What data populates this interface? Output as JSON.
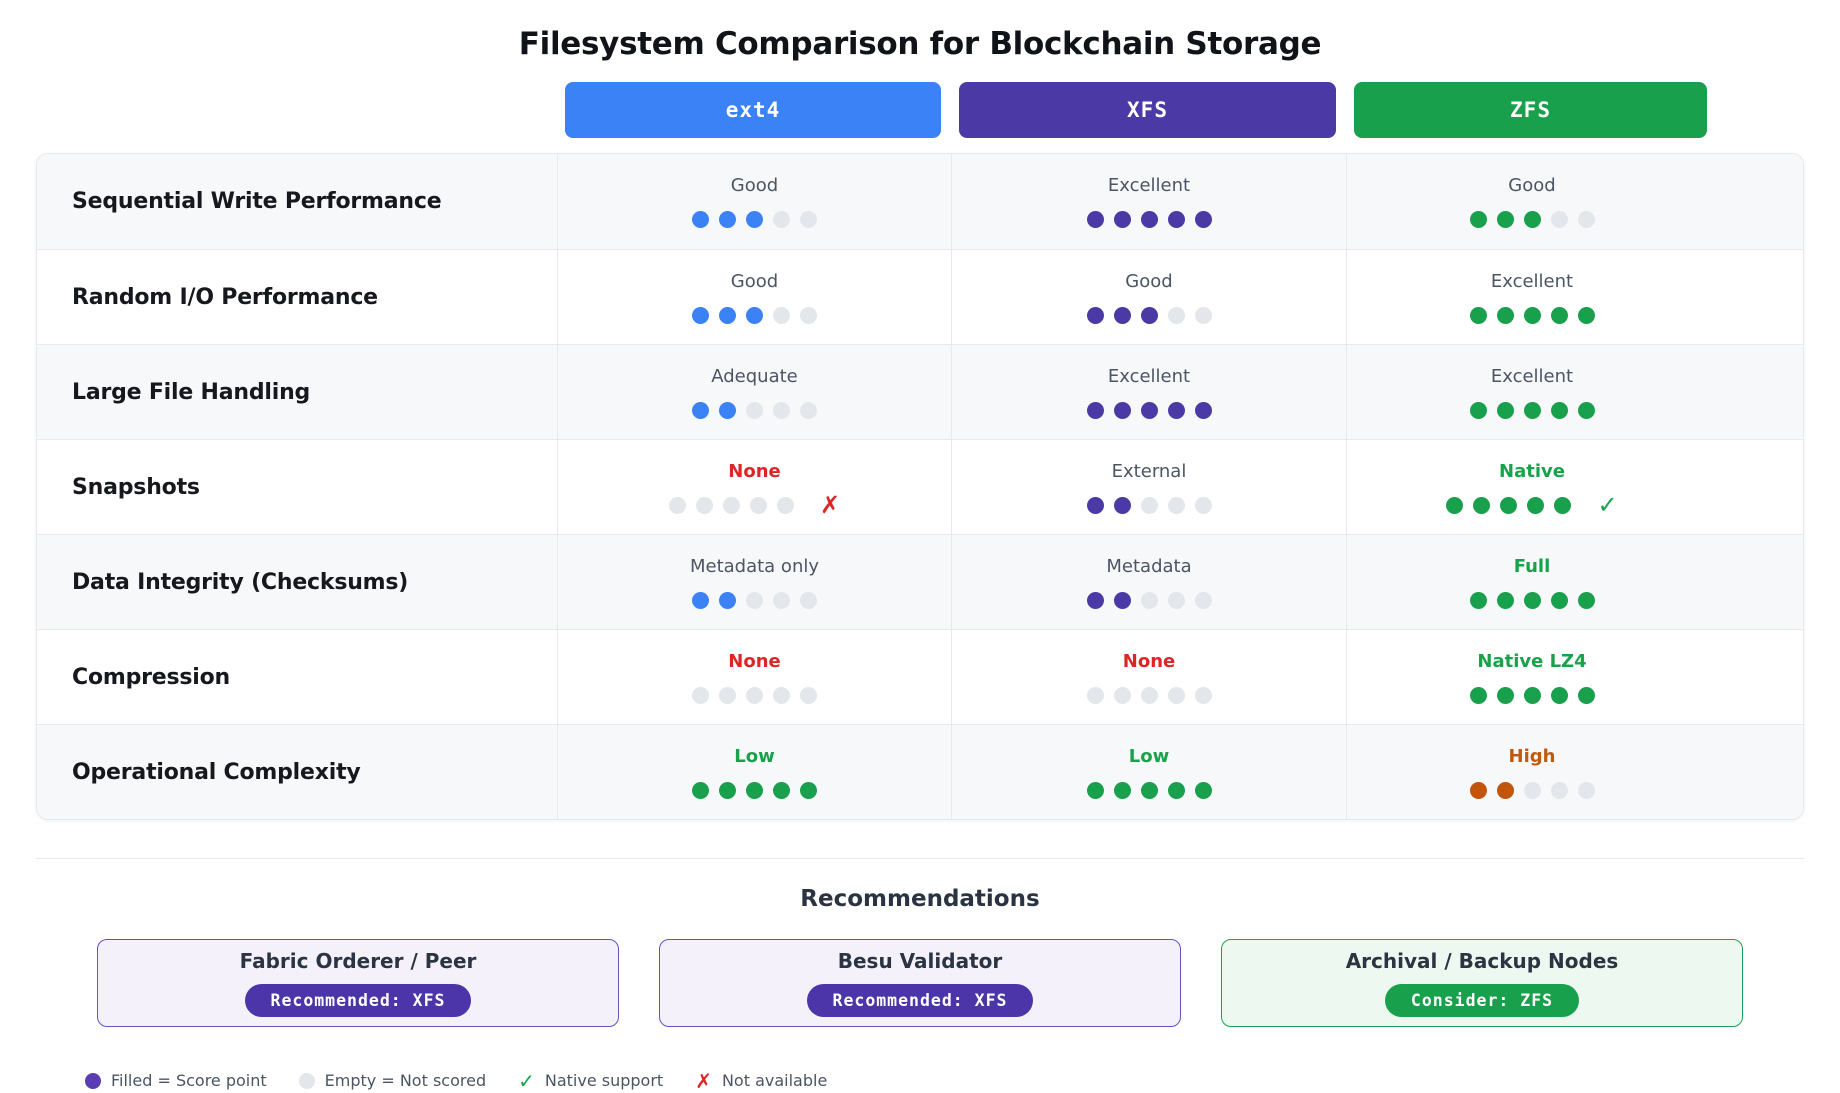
{
  "title": "Filesystem Comparison for Blockchain Storage",
  "palette": {
    "blue": "#3b82f6",
    "purple": "#4b3aa6",
    "green": "#18a04c",
    "orange": "#c2540b",
    "red": "#dc2626",
    "green_text": "#16a34a",
    "orange_text": "#c05a11",
    "muted_text": "#4b5563",
    "empty_dot": "#e3e6ea",
    "legend_filled_dot": "#5b3db2"
  },
  "glyphs": {
    "check": "✓",
    "cross": "✗"
  },
  "chart_data": {
    "type": "table",
    "title": "Filesystem Comparison for Blockchain Storage",
    "score_scale": {
      "min": 0,
      "max": 5
    },
    "columns": [
      {
        "label": "ext4",
        "color": "#3b82f6"
      },
      {
        "label": "XFS",
        "color": "#4b3aa6"
      },
      {
        "label": "ZFS",
        "color": "#18a04c"
      }
    ],
    "rows": [
      {
        "criterion": "Sequential Write Performance",
        "cells": [
          {
            "rating": "Good",
            "score": 3,
            "tone": "muted",
            "dots": "column",
            "mark": null
          },
          {
            "rating": "Excellent",
            "score": 5,
            "tone": "muted",
            "dots": "column",
            "mark": null
          },
          {
            "rating": "Good",
            "score": 3,
            "tone": "muted",
            "dots": "column",
            "mark": null
          }
        ]
      },
      {
        "criterion": "Random I/O Performance",
        "cells": [
          {
            "rating": "Good",
            "score": 3,
            "tone": "muted",
            "dots": "column",
            "mark": null
          },
          {
            "rating": "Good",
            "score": 3,
            "tone": "muted",
            "dots": "column",
            "mark": null
          },
          {
            "rating": "Excellent",
            "score": 5,
            "tone": "muted",
            "dots": "column",
            "mark": null
          }
        ]
      },
      {
        "criterion": "Large File Handling",
        "cells": [
          {
            "rating": "Adequate",
            "score": 2,
            "tone": "muted",
            "dots": "column",
            "mark": null
          },
          {
            "rating": "Excellent",
            "score": 5,
            "tone": "muted",
            "dots": "column",
            "mark": null
          },
          {
            "rating": "Excellent",
            "score": 5,
            "tone": "muted",
            "dots": "column",
            "mark": null
          }
        ]
      },
      {
        "criterion": "Snapshots",
        "cells": [
          {
            "rating": "None",
            "score": 0,
            "tone": "red",
            "dots": "column",
            "mark": "cross"
          },
          {
            "rating": "External",
            "score": 2,
            "tone": "muted",
            "dots": "column",
            "mark": null
          },
          {
            "rating": "Native",
            "score": 5,
            "tone": "green",
            "dots": "green",
            "mark": "check"
          }
        ]
      },
      {
        "criterion": "Data Integrity (Checksums)",
        "cells": [
          {
            "rating": "Metadata only",
            "score": 2,
            "tone": "muted",
            "dots": "column",
            "mark": null
          },
          {
            "rating": "Metadata",
            "score": 2,
            "tone": "muted",
            "dots": "column",
            "mark": null
          },
          {
            "rating": "Full",
            "score": 5,
            "tone": "green",
            "dots": "green",
            "mark": null
          }
        ]
      },
      {
        "criterion": "Compression",
        "cells": [
          {
            "rating": "None",
            "score": 0,
            "tone": "red",
            "dots": "column",
            "mark": null
          },
          {
            "rating": "None",
            "score": 0,
            "tone": "red",
            "dots": "column",
            "mark": null
          },
          {
            "rating": "Native LZ4",
            "score": 5,
            "tone": "green",
            "dots": "green",
            "mark": null
          }
        ]
      },
      {
        "criterion": "Operational Complexity",
        "cells": [
          {
            "rating": "Low",
            "score": 5,
            "tone": "green",
            "dots": "green",
            "mark": null
          },
          {
            "rating": "Low",
            "score": 5,
            "tone": "green",
            "dots": "green",
            "mark": null
          },
          {
            "rating": "High",
            "score": 2,
            "tone": "orange",
            "dots": "orange",
            "mark": null
          }
        ]
      }
    ]
  },
  "recommendations": {
    "heading": "Recommendations",
    "cards": [
      {
        "title": "Fabric Orderer / Peer",
        "badge": "Recommended: XFS",
        "theme": "purple"
      },
      {
        "title": "Besu Validator",
        "badge": "Recommended: XFS",
        "theme": "purple"
      },
      {
        "title": "Archival / Backup Nodes",
        "badge": "Consider: ZFS",
        "theme": "green"
      }
    ],
    "themes": {
      "purple": {
        "bg": "#f4f1fb",
        "border": "#6a4fc6",
        "badge_bg": "#4b35a8"
      },
      "green": {
        "bg": "#edf9f0",
        "border": "#1da153",
        "badge_bg": "#18a04c"
      }
    }
  },
  "legend": [
    {
      "marker": "dot-filled",
      "label": "Filled = Score point"
    },
    {
      "marker": "dot-empty",
      "label": "Empty = Not scored"
    },
    {
      "marker": "check",
      "label": "Native support"
    },
    {
      "marker": "cross",
      "label": "Not available"
    }
  ]
}
